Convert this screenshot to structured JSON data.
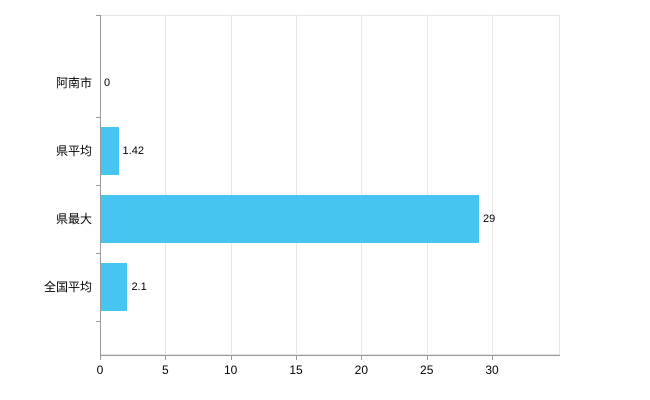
{
  "chart_data": {
    "type": "bar",
    "orientation": "horizontal",
    "title": "",
    "xlabel": "",
    "ylabel": "",
    "categories": [
      "阿南市",
      "県平均",
      "県最大",
      "全国平均"
    ],
    "values": [
      0,
      1.42,
      29,
      2.1
    ],
    "value_labels": [
      "0",
      "1.42",
      "29",
      "2.1"
    ],
    "xticks": [
      0,
      5,
      10,
      15,
      20,
      25,
      30
    ],
    "xtick_labels": [
      "0",
      "5",
      "10",
      "15",
      "20",
      "25",
      "30"
    ],
    "xlim": [
      0,
      35.2
    ],
    "grid": true,
    "legend": false
  },
  "colors": {
    "bar": "#45c5f0",
    "grid": "#e8e8e8",
    "axis": "#9a9a9a",
    "plot_border": "#e4e4e4",
    "text": "#000000",
    "background": "#ffffff"
  }
}
